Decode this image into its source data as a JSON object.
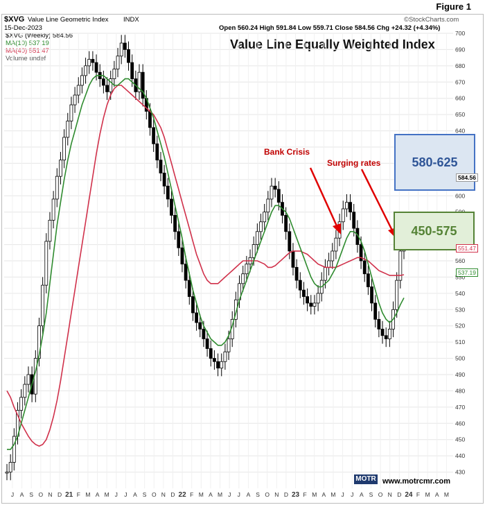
{
  "figure_label": "Figure 1",
  "header": {
    "symbol": "$XVG",
    "name": "Value Line Geometric Index",
    "exchange": "INDX",
    "date": "15-Dec-2023",
    "stockcharts": "©StockCharts.com",
    "ohlc": "Open 560.24  High 591.84  Low 559.71  Close 584.56  Chg +24.32 (+4.34%)"
  },
  "legend": {
    "weekly": "$XVG (Weekly) 584.56",
    "ma10": "MA(10) 537.19",
    "ma40": "MA(40) 551.47",
    "volume": "Volume undef"
  },
  "price_tags": {
    "last": "584.56",
    "ma40": "551.47",
    "ma10": "537.19"
  },
  "annotations": {
    "bank_crisis": "Bank Crisis",
    "surging_rates": "Surging rates"
  },
  "boxes": {
    "upper": "580-625",
    "lower": "450-575"
  },
  "footer": {
    "logo": "MOTR",
    "url": "www.motrcmr.com"
  },
  "colors": {
    "candle": "#000000",
    "ma10": "#2e8b2e",
    "ma40": "#d0304a",
    "arrow": "#e00000",
    "blue_box": "#4472c4",
    "green_box": "#548235"
  },
  "chart_data": {
    "type": "line",
    "title": "Value Line Equally Weighted Index",
    "ylim": [
      420,
      700
    ],
    "yticks": [
      430,
      440,
      450,
      460,
      470,
      480,
      490,
      500,
      510,
      520,
      530,
      540,
      550,
      560,
      570,
      580,
      590,
      600,
      610,
      620,
      630,
      640,
      650,
      660,
      670,
      680,
      690,
      700
    ],
    "x_tick_labels": [
      "J",
      "A",
      "S",
      "O",
      "N",
      "D",
      "21",
      "F",
      "M",
      "A",
      "M",
      "J",
      "J",
      "A",
      "S",
      "O",
      "N",
      "D",
      "22",
      "F",
      "M",
      "A",
      "M",
      "J",
      "J",
      "A",
      "S",
      "O",
      "N",
      "D",
      "23",
      "F",
      "M",
      "A",
      "M",
      "J",
      "J",
      "A",
      "S",
      "O",
      "N",
      "D",
      "24",
      "F",
      "M",
      "A",
      "M"
    ],
    "series": [
      {
        "name": "$XVG (Weekly)",
        "values": [
          430,
          436,
          452,
          468,
          476,
          484,
          490,
          478,
          500,
          520,
          545,
          572,
          585,
          598,
          612,
          622,
          636,
          646,
          656,
          662,
          668,
          674,
          680,
          684,
          682,
          676,
          672,
          668,
          664,
          672,
          678,
          686,
          694,
          690,
          682,
          672,
          664,
          676,
          660,
          652,
          642,
          632,
          622,
          614,
          606,
          598,
          588,
          578,
          568,
          558,
          548,
          538,
          528,
          522,
          518,
          512,
          506,
          500,
          498,
          494,
          498,
          504,
          512,
          524,
          536,
          546,
          552,
          558,
          562,
          570,
          578,
          584,
          590,
          598,
          606,
          604,
          596,
          588,
          578,
          566,
          556,
          548,
          542,
          538,
          534,
          532,
          534,
          540,
          548,
          556,
          560,
          566,
          574,
          584,
          592,
          596,
          590,
          580,
          570,
          560,
          552,
          544,
          534,
          524,
          518,
          514,
          512,
          518,
          530,
          548,
          566,
          584
        ]
      },
      {
        "name": "MA(10)",
        "values": [
          444,
          444,
          447,
          452,
          460,
          468,
          476,
          484,
          492,
          502,
          514,
          528,
          546,
          564,
          582,
          596,
          610,
          622,
          632,
          640,
          648,
          656,
          662,
          668,
          672,
          674,
          674,
          674,
          672,
          670,
          668,
          668,
          670,
          672,
          672,
          670,
          668,
          666,
          664,
          660,
          654,
          648,
          640,
          632,
          624,
          614,
          604,
          594,
          584,
          574,
          562,
          552,
          542,
          534,
          526,
          520,
          516,
          512,
          510,
          508,
          508,
          510,
          514,
          520,
          528,
          536,
          542,
          548,
          554,
          560,
          566,
          572,
          578,
          584,
          590,
          594,
          594,
          592,
          590,
          586,
          580,
          574,
          568,
          562,
          556,
          550,
          546,
          544,
          544,
          546,
          548,
          552,
          556,
          562,
          568,
          574,
          578,
          578,
          576,
          572,
          566,
          558,
          550,
          542,
          534,
          528,
          524,
          522,
          524,
          528,
          533,
          537.19
        ]
      },
      {
        "name": "MA(40)",
        "values": [
          480,
          476,
          470,
          465,
          460,
          456,
          452,
          449,
          447,
          446,
          447,
          450,
          456,
          464,
          474,
          486,
          500,
          514,
          528,
          542,
          556,
          570,
          584,
          598,
          612,
          626,
          638,
          648,
          656,
          662,
          666,
          668,
          668,
          666,
          664,
          662,
          660,
          658,
          656,
          654,
          652,
          650,
          646,
          642,
          636,
          628,
          620,
          612,
          604,
          596,
          588,
          580,
          572,
          564,
          558,
          552,
          548,
          546,
          546,
          546,
          548,
          550,
          552,
          554,
          556,
          558,
          560,
          560,
          560,
          560,
          560,
          559,
          558,
          556,
          556,
          557,
          559,
          561,
          563,
          565,
          566,
          566,
          566,
          565,
          564,
          562,
          560,
          558,
          557,
          556,
          556,
          556,
          556,
          557,
          558,
          559,
          560,
          561,
          562,
          562,
          561,
          560,
          558,
          556,
          554,
          553,
          552,
          551,
          551,
          551,
          551,
          551.47
        ]
      }
    ]
  }
}
